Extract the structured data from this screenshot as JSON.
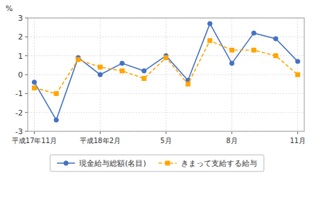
{
  "chart_data": {
    "type": "line",
    "y_label": "%",
    "categories": [
      "平成17年11月",
      null,
      null,
      "平成18年2月",
      null,
      null,
      "5月",
      null,
      null,
      "8月",
      null,
      null,
      "11月"
    ],
    "series": [
      {
        "name": "現金給与総額(名目)",
        "color": "#4472C4",
        "marker": "circle",
        "line_style": "solid",
        "values": [
          -0.4,
          -2.4,
          0.9,
          0.0,
          0.6,
          0.2,
          1.0,
          -0.3,
          2.7,
          0.6,
          2.2,
          1.9,
          0.7
        ]
      },
      {
        "name": "きまって支給する給与",
        "color": "#FFA500",
        "marker": "square",
        "line_style": "dashed",
        "values": [
          -0.7,
          -1.0,
          0.8,
          0.4,
          0.2,
          -0.2,
          0.9,
          -0.5,
          1.8,
          1.3,
          1.3,
          1.0,
          0.0
        ]
      }
    ],
    "ylim": [
      -3,
      3
    ],
    "yticks": [
      -3,
      -2,
      -1,
      0,
      1,
      2,
      3
    ],
    "grid": true,
    "legend": "bottom"
  }
}
